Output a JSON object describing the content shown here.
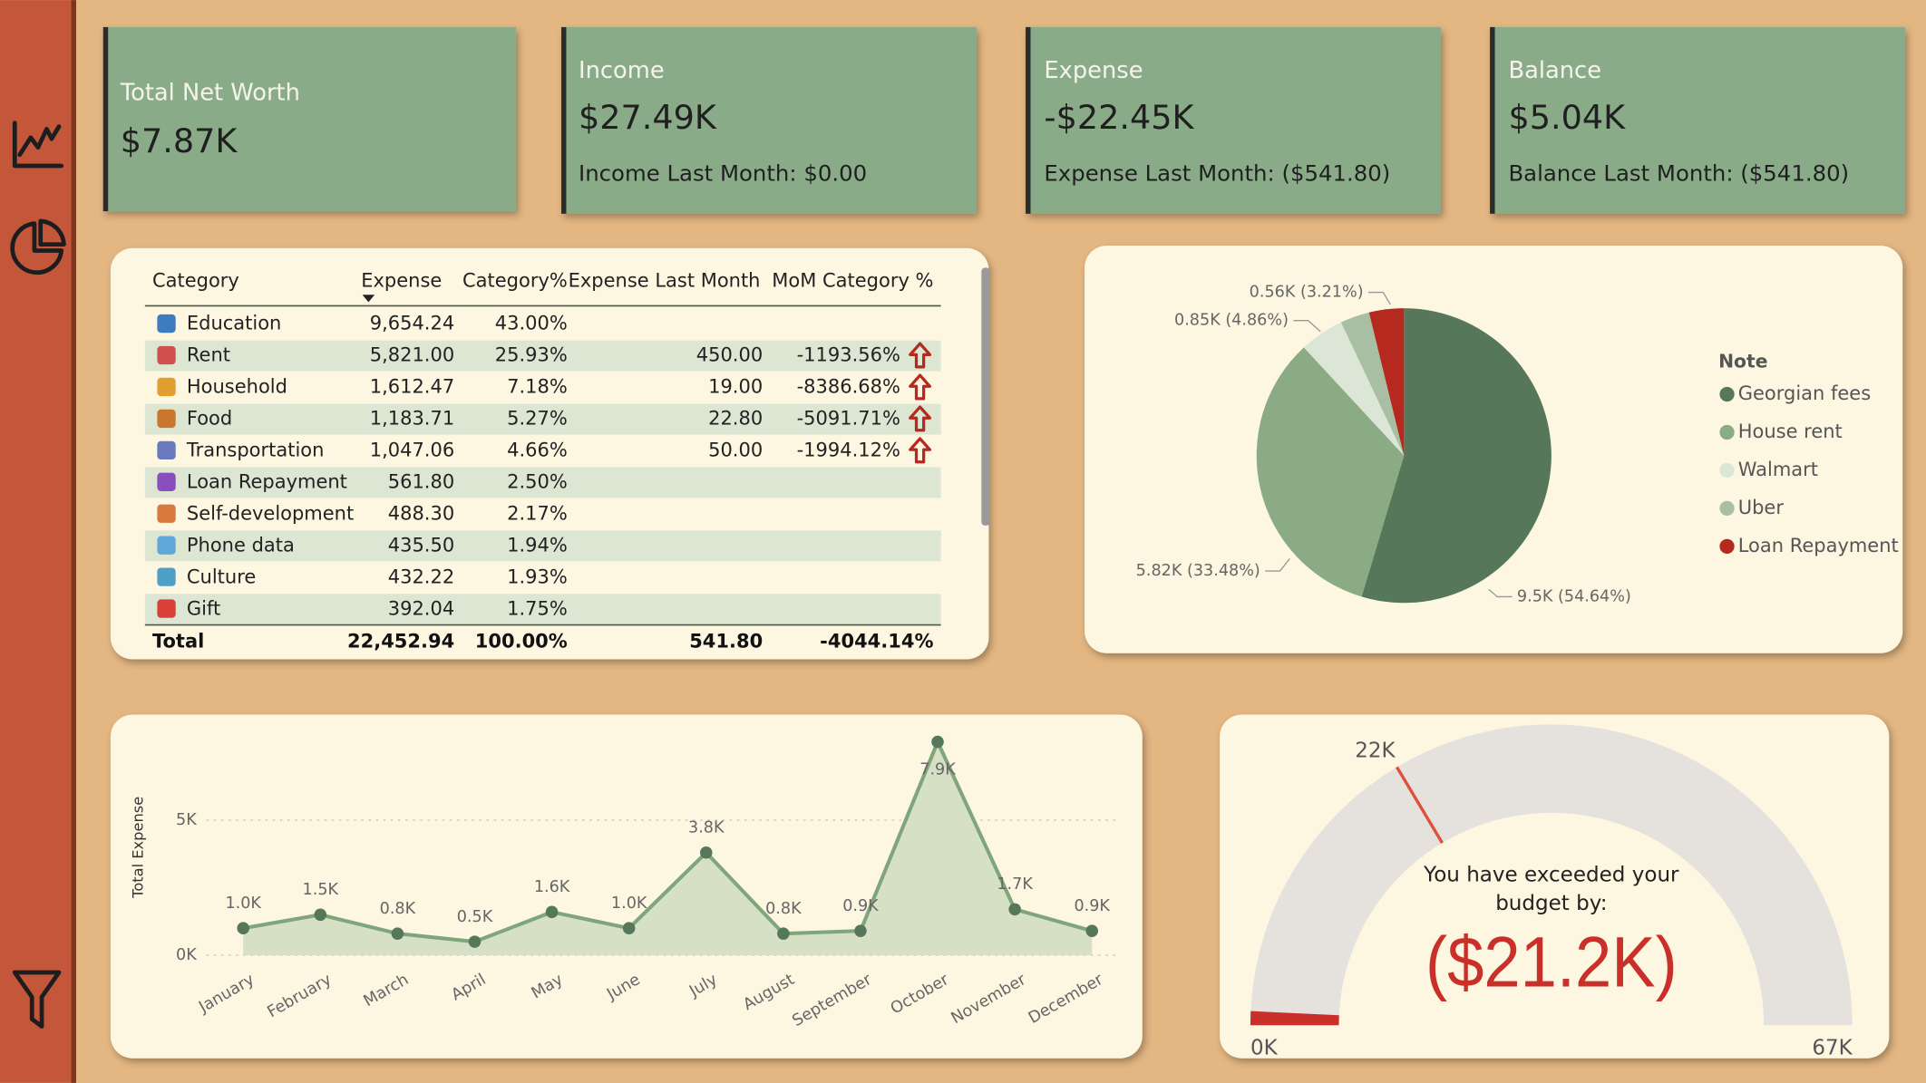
{
  "cards": [
    {
      "title": "Total Net Worth",
      "value": "$7.87K"
    },
    {
      "title": "Income",
      "value": "$27.49K",
      "subtitle": "Income Last Month: $0.00"
    },
    {
      "title": "Expense",
      "value": "-$22.45K",
      "subtitle": "Expense Last Month: ($541.80)"
    },
    {
      "title": "Balance",
      "value": "$5.04K",
      "subtitle": "Balance Last Month: ($541.80)"
    }
  ],
  "table": {
    "columns": [
      "Category",
      "Expense",
      "Category%",
      "Expense Last Month",
      "MoM Category %"
    ],
    "rows": [
      [
        "Education",
        "9,654.24",
        "43.00%",
        null,
        null
      ],
      [
        "Rent",
        "5,821.00",
        "25.93%",
        "450.00",
        "-1193.56%"
      ],
      [
        "Household",
        "1,612.47",
        "7.18%",
        "19.00",
        "-8386.68%"
      ],
      [
        "Food",
        "1,183.71",
        "5.27%",
        "22.80",
        "-5091.71%"
      ],
      [
        "Transportation",
        "1,047.06",
        "4.66%",
        "50.00",
        "-1994.12%"
      ],
      [
        "Loan Repayment",
        "561.80",
        "2.50%",
        null,
        null
      ],
      [
        "Self-development",
        "488.30",
        "2.17%",
        null,
        null
      ],
      [
        "Phone data",
        "435.50",
        "1.94%",
        null,
        null
      ],
      [
        "Culture",
        "432.22",
        "1.93%",
        null,
        null
      ],
      [
        "Gift",
        "392.04",
        "1.75%",
        null,
        null
      ]
    ],
    "total": [
      "Total",
      "22,452.94",
      "100.00%",
      "541.80",
      "-4044.14%"
    ]
  },
  "chart_data": [
    {
      "type": "pie",
      "legend_title": "Note",
      "categories": [
        "Georgian fees",
        "House rent",
        "Walmart",
        "Uber",
        "Loan Repayment"
      ],
      "values": [
        54.64,
        33.48,
        4.86,
        3.21,
        3.81
      ],
      "value_labels": [
        "9.5K (54.64%)",
        "5.82K (33.48%)",
        "0.85K (4.86%)",
        "0.56K (3.21%)",
        null
      ],
      "colors": [
        "#56775a",
        "#8aab84",
        "#dce6d6",
        "#a9bfa3",
        "#b5291f"
      ]
    },
    {
      "type": "line",
      "y_label": "Total Expense",
      "categories": [
        "January",
        "February",
        "March",
        "April",
        "May",
        "June",
        "July",
        "August",
        "September",
        "October",
        "November",
        "December"
      ],
      "values": [
        1000,
        1500,
        800,
        500,
        1600,
        1000,
        3800,
        800,
        900,
        7900,
        1700,
        900
      ],
      "value_labels": [
        "1.0K",
        "1.5K",
        "0.8K",
        "0.5K",
        "1.6K",
        "1.0K",
        "3.8K",
        "0.8K",
        "0.9K",
        "7.9K",
        "1.7K",
        "0.9K"
      ],
      "ylim": [
        0,
        8100
      ],
      "yticks": [
        {
          "value": 0,
          "label": "0K"
        },
        {
          "value": 5000,
          "label": "5K"
        }
      ],
      "grid": true,
      "color": "#7fa57a",
      "fill": "#cfdcbf"
    },
    {
      "type": "gauge",
      "value": 1000,
      "min": {
        "value": 0,
        "label": "0K"
      },
      "max": {
        "value": 67000,
        "label": "67K"
      },
      "target": {
        "value": 22000,
        "label": "22K"
      },
      "message": "You have exceeded your budget by:",
      "callout": "($21.2K)",
      "color": "#c9302a",
      "track": "#e5e2de"
    }
  ]
}
